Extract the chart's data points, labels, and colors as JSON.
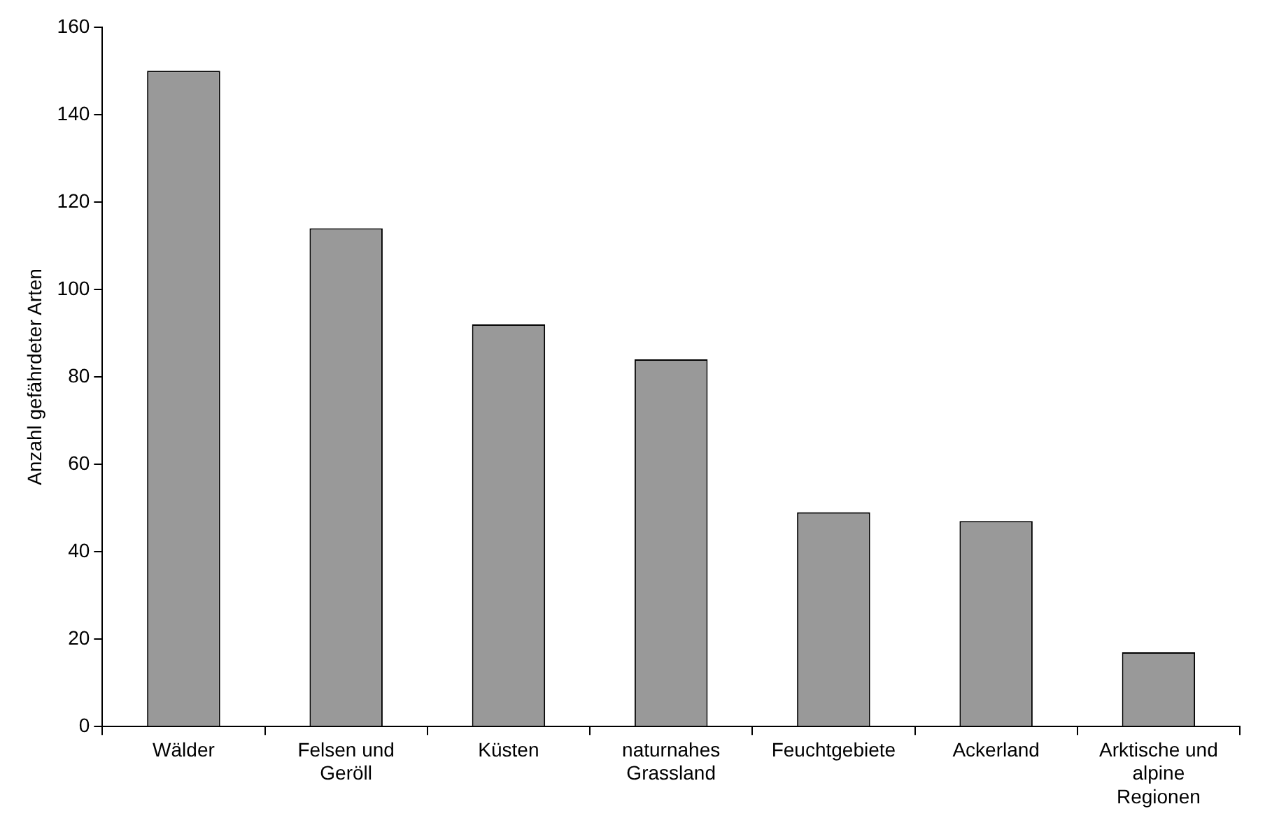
{
  "chart_data": {
    "type": "bar",
    "ylabel": "Anzahl gefährdeter Arten",
    "categories": [
      "Wälder",
      "Felsen und Geröll",
      "Küsten",
      "naturnahes Grassland",
      "Feuchtgebiete",
      "Ackerland",
      "Arktische und alpine Regionen"
    ],
    "values": [
      150,
      114,
      92,
      84,
      49,
      47,
      17
    ],
    "color": "#999999",
    "ylim": [
      0,
      160
    ],
    "yticks": [
      0,
      20,
      40,
      60,
      80,
      100,
      120,
      140,
      160
    ],
    "grid": false,
    "legend": false
  }
}
